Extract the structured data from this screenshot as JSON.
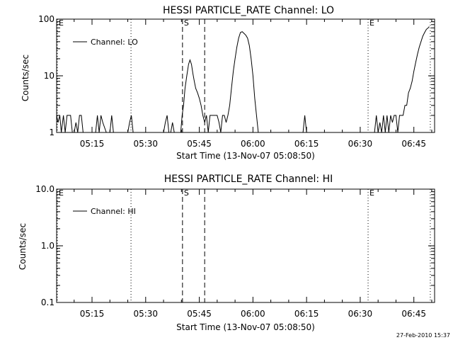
{
  "footer_stamp": "27-Feb-2010 15:37",
  "chart_data": [
    {
      "type": "line",
      "title": "HESSI PARTICLE_RATE Channel: LO",
      "xlabel": "Start Time (13-Nov-07 05:08:50)",
      "ylabel": "Counts/sec",
      "y_scale": "log",
      "ylim": [
        1,
        100
      ],
      "y_ticks": [
        {
          "v": 1,
          "label": "1"
        },
        {
          "v": 10,
          "label": "10"
        },
        {
          "v": 100,
          "label": "100"
        }
      ],
      "xlim_minutes": [
        5.1,
        110.8
      ],
      "x_ticks": [
        {
          "v": 15,
          "label": "05:15"
        },
        {
          "v": 30,
          "label": "05:30"
        },
        {
          "v": 45,
          "label": "05:45"
        },
        {
          "v": 60,
          "label": "06:00"
        },
        {
          "v": 75,
          "label": "06:15"
        },
        {
          "v": 90,
          "label": "06:30"
        },
        {
          "v": 105,
          "label": "06:45"
        }
      ],
      "legend": {
        "label": "Channel: LO",
        "position": "top-left"
      },
      "markers": [
        {
          "x": 5.3,
          "style": "dotted",
          "label": "E"
        },
        {
          "x": 25.9,
          "style": "dotted",
          "label": ""
        },
        {
          "x": 40.3,
          "style": "dashed",
          "label": "S"
        },
        {
          "x": 46.5,
          "style": "dashed",
          "label": ""
        },
        {
          "x": 92.2,
          "style": "dotted",
          "label": "E"
        },
        {
          "x": 109.6,
          "style": "dotted",
          "label": ""
        }
      ],
      "series": [
        {
          "name": "Channel: LO",
          "points": [
            [
              5.1,
              2
            ],
            [
              5.5,
              1.5
            ],
            [
              6,
              2
            ],
            [
              6.4,
              1
            ],
            [
              7,
              2
            ],
            [
              7.5,
              1
            ],
            [
              8,
              2
            ],
            [
              8.5,
              2
            ],
            [
              9,
              2
            ],
            [
              9.5,
              1
            ],
            [
              10,
              1
            ],
            [
              10.5,
              1.5
            ],
            [
              11,
              1
            ],
            [
              11.5,
              2
            ],
            [
              12,
              2
            ],
            [
              12.5,
              1
            ],
            [
              13,
              1
            ],
            [
              14,
              1
            ],
            [
              15,
              1
            ],
            [
              16,
              1
            ],
            [
              16.5,
              2
            ],
            [
              17,
              1
            ],
            [
              17.5,
              2
            ],
            [
              18,
              1.5
            ],
            [
              19,
              1
            ],
            [
              20,
              1
            ],
            [
              20.5,
              2
            ],
            [
              21,
              1
            ],
            [
              22,
              1
            ],
            [
              23,
              1
            ],
            [
              24,
              1
            ],
            [
              25,
              1
            ],
            [
              25.5,
              1.5
            ],
            [
              26,
              2
            ],
            [
              26.5,
              1
            ],
            [
              27,
              1
            ],
            [
              28,
              1
            ],
            [
              29,
              1
            ],
            [
              30,
              1
            ],
            [
              31,
              1
            ],
            [
              32,
              1
            ],
            [
              33,
              1
            ],
            [
              34,
              1
            ],
            [
              35,
              1
            ],
            [
              35.5,
              1.5
            ],
            [
              36,
              2
            ],
            [
              36.5,
              1
            ],
            [
              37,
              1
            ],
            [
              37.5,
              1.5
            ],
            [
              38,
              1
            ],
            [
              39,
              1
            ],
            [
              39.8,
              1
            ],
            [
              40.2,
              2
            ],
            [
              40.6,
              3
            ],
            [
              41,
              6
            ],
            [
              41.5,
              10
            ],
            [
              42,
              16
            ],
            [
              42.4,
              19
            ],
            [
              42.8,
              16
            ],
            [
              43.2,
              11
            ],
            [
              43.6,
              8
            ],
            [
              44,
              6
            ],
            [
              44.5,
              5
            ],
            [
              45,
              4
            ],
            [
              45.5,
              3
            ],
            [
              46,
              2
            ],
            [
              46.5,
              1.5
            ],
            [
              47,
              2
            ],
            [
              47.5,
              1
            ],
            [
              48,
              2
            ],
            [
              48.5,
              2
            ],
            [
              49,
              2
            ],
            [
              49.5,
              2
            ],
            [
              50,
              2
            ],
            [
              50.5,
              1.5
            ],
            [
              51,
              1
            ],
            [
              51.5,
              2
            ],
            [
              52,
              2
            ],
            [
              52.5,
              1.5
            ],
            [
              53,
              2
            ],
            [
              53.5,
              3
            ],
            [
              54,
              6
            ],
            [
              54.5,
              12
            ],
            [
              55,
              20
            ],
            [
              55.5,
              32
            ],
            [
              56,
              46
            ],
            [
              56.5,
              58
            ],
            [
              57,
              60
            ],
            [
              57.5,
              56
            ],
            [
              58,
              52
            ],
            [
              58.5,
              46
            ],
            [
              59,
              34
            ],
            [
              59.5,
              20
            ],
            [
              60,
              10
            ],
            [
              60.5,
              4
            ],
            [
              61,
              2
            ],
            [
              61.5,
              1
            ],
            [
              62,
              1
            ],
            [
              63,
              1
            ],
            [
              64,
              1
            ],
            [
              65,
              1
            ],
            [
              66,
              1
            ],
            [
              67,
              1
            ],
            [
              68,
              1
            ],
            [
              69,
              1
            ],
            [
              70,
              1
            ],
            [
              71,
              1
            ],
            [
              72,
              1
            ],
            [
              73,
              1
            ],
            [
              74,
              1
            ],
            [
              74.5,
              2
            ],
            [
              75,
              1
            ],
            [
              76,
              1
            ],
            [
              77,
              1
            ],
            [
              78,
              1
            ],
            [
              79,
              1
            ],
            [
              80,
              1
            ],
            [
              81,
              1
            ],
            [
              82,
              1
            ],
            [
              83,
              1
            ],
            [
              84,
              1
            ],
            [
              85,
              1
            ],
            [
              86,
              1
            ],
            [
              87,
              1
            ],
            [
              88,
              1
            ],
            [
              89,
              1
            ],
            [
              90,
              1
            ],
            [
              91,
              1
            ],
            [
              92,
              1
            ],
            [
              93,
              1
            ],
            [
              94,
              1
            ],
            [
              94.5,
              2
            ],
            [
              95,
              1
            ],
            [
              95.5,
              1.5
            ],
            [
              96,
              1
            ],
            [
              96.5,
              2
            ],
            [
              97,
              1
            ],
            [
              97.5,
              2
            ],
            [
              98,
              1
            ],
            [
              98.5,
              2
            ],
            [
              99,
              1.5
            ],
            [
              99.5,
              2
            ],
            [
              100,
              2
            ],
            [
              100.5,
              1
            ],
            [
              101,
              2
            ],
            [
              101.5,
              2
            ],
            [
              102,
              2
            ],
            [
              102.5,
              3
            ],
            [
              103,
              3
            ],
            [
              103.5,
              5
            ],
            [
              104,
              6
            ],
            [
              104.5,
              8
            ],
            [
              105,
              12
            ],
            [
              105.5,
              17
            ],
            [
              106,
              24
            ],
            [
              106.5,
              32
            ],
            [
              107,
              40
            ],
            [
              107.5,
              50
            ],
            [
              108,
              58
            ],
            [
              108.5,
              66
            ],
            [
              109,
              70
            ],
            [
              109.3,
              74
            ]
          ]
        }
      ]
    },
    {
      "type": "line",
      "title": "HESSI PARTICLE_RATE Channel: HI",
      "xlabel": "Start Time (13-Nov-07 05:08:50)",
      "ylabel": "Counts/sec",
      "y_scale": "log",
      "ylim": [
        0.1,
        10
      ],
      "y_ticks": [
        {
          "v": 0.1,
          "label": "0.1"
        },
        {
          "v": 1,
          "label": "1.0"
        },
        {
          "v": 10,
          "label": "10.0"
        }
      ],
      "xlim_minutes": [
        5.1,
        110.8
      ],
      "x_ticks": [
        {
          "v": 15,
          "label": "05:15"
        },
        {
          "v": 30,
          "label": "05:30"
        },
        {
          "v": 45,
          "label": "05:45"
        },
        {
          "v": 60,
          "label": "06:00"
        },
        {
          "v": 75,
          "label": "06:15"
        },
        {
          "v": 90,
          "label": "06:30"
        },
        {
          "v": 105,
          "label": "06:45"
        }
      ],
      "legend": {
        "label": "Channel: HI",
        "position": "top-left"
      },
      "markers": [
        {
          "x": 5.3,
          "style": "dotted",
          "label": "E"
        },
        {
          "x": 25.9,
          "style": "dotted",
          "label": ""
        },
        {
          "x": 40.3,
          "style": "dashed",
          "label": "S"
        },
        {
          "x": 46.5,
          "style": "dashed",
          "label": ""
        },
        {
          "x": 92.2,
          "style": "dotted",
          "label": "E"
        },
        {
          "x": 109.6,
          "style": "dotted",
          "label": ""
        }
      ],
      "series": [
        {
          "name": "Channel: HI",
          "points": []
        }
      ]
    }
  ]
}
